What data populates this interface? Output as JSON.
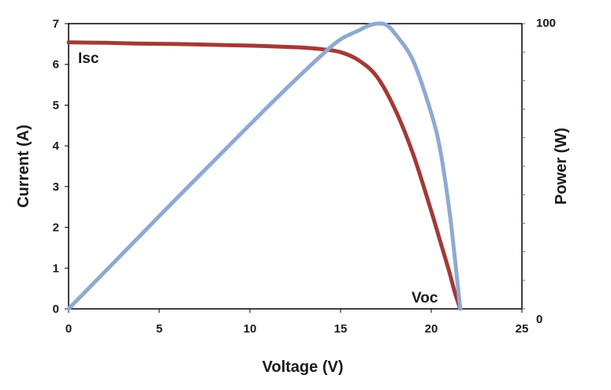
{
  "chart_data": {
    "type": "line",
    "title": "",
    "xlabel": "Voltage (V)",
    "ylabel": "Current (A)",
    "y2label": "Power (W)",
    "xlim": [
      0,
      25
    ],
    "ylim": [
      0,
      7
    ],
    "y2lim": [
      0,
      100
    ],
    "xticks": [
      0,
      5,
      10,
      15,
      20,
      25
    ],
    "yticks": [
      0,
      1,
      2,
      3,
      4,
      5,
      6,
      7
    ],
    "y2ticks": [
      0,
      100
    ],
    "grid": false,
    "legend": "none",
    "annotations": [
      {
        "text": "Isc",
        "x": 0.6,
        "y": 6.2
      },
      {
        "text": "Voc",
        "x": 19.3,
        "y": 0.05
      }
    ],
    "series": [
      {
        "axis": "left",
        "color": "#a23a36",
        "x": [
          0,
          2,
          4,
          6,
          8,
          10,
          12,
          13,
          14,
          15,
          16,
          17,
          18,
          19,
          20,
          20.5,
          21,
          21.3,
          21.6
        ],
        "values": [
          6.54,
          6.53,
          6.51,
          6.5,
          6.48,
          6.46,
          6.43,
          6.41,
          6.37,
          6.3,
          6.1,
          5.7,
          4.9,
          3.8,
          2.4,
          1.65,
          0.9,
          0.4,
          0.0
        ]
      },
      {
        "axis": "right",
        "color": "#8fa9d2",
        "x": [
          0,
          2,
          4,
          6,
          8,
          10,
          12,
          14,
          15,
          16,
          16.5,
          17,
          17.5,
          18,
          19,
          20,
          20.5,
          21,
          21.3,
          21.6
        ],
        "values": [
          0,
          13,
          26,
          39,
          51.8,
          64.6,
          77.2,
          89.2,
          94.5,
          97.6,
          99.2,
          100,
          99.6,
          96.5,
          87.0,
          68.6,
          55.5,
          34.5,
          17.8,
          0
        ]
      }
    ]
  }
}
